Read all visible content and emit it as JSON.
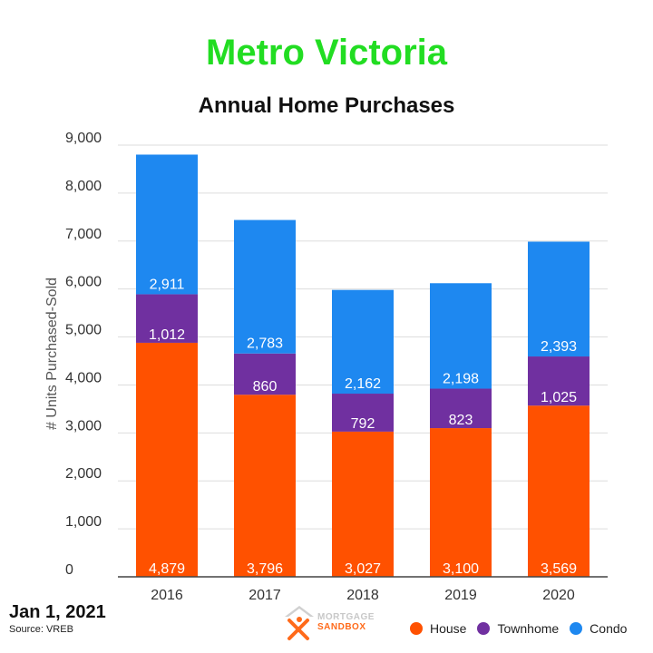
{
  "header": {
    "title": "Metro Victoria",
    "subtitle": "Annual Home Purchases"
  },
  "footer": {
    "date": "Jan 1, 2021",
    "source": "Source: VREB",
    "logo_line1": "MORTGAGE",
    "logo_line2": "SANDBOX"
  },
  "chart_data": {
    "type": "bar",
    "stacked": true,
    "title": "Annual Home Purchases",
    "xlabel": "",
    "ylabel": "# Units Purchased-Sold",
    "ylim": [
      0,
      9000
    ],
    "yticks": [
      0,
      1000,
      2000,
      3000,
      4000,
      5000,
      6000,
      7000,
      8000,
      9000
    ],
    "ytick_labels": [
      "0",
      "1,000",
      "2,000",
      "3,000",
      "4,000",
      "5,000",
      "6,000",
      "7,000",
      "8,000",
      "9,000"
    ],
    "grid": true,
    "legend": "bottom-right",
    "categories": [
      "2016",
      "2017",
      "2018",
      "2019",
      "2020"
    ],
    "series": [
      {
        "name": "House",
        "color": "#ff5100",
        "values": [
          4879,
          3796,
          3027,
          3100,
          3569
        ],
        "labels": [
          "4,879",
          "3,796",
          "3,027",
          "3,100",
          "3,569"
        ]
      },
      {
        "name": "Townhome",
        "color": "#7030a0",
        "values": [
          1012,
          860,
          792,
          823,
          1025
        ],
        "labels": [
          "1,012",
          "860",
          "792",
          "823",
          "1,025"
        ]
      },
      {
        "name": "Condo",
        "color": "#1e88f0",
        "values": [
          2911,
          2783,
          2162,
          2198,
          2393
        ],
        "labels": [
          "2,911",
          "2,783",
          "2,162",
          "2,198",
          "2,393"
        ]
      }
    ]
  }
}
